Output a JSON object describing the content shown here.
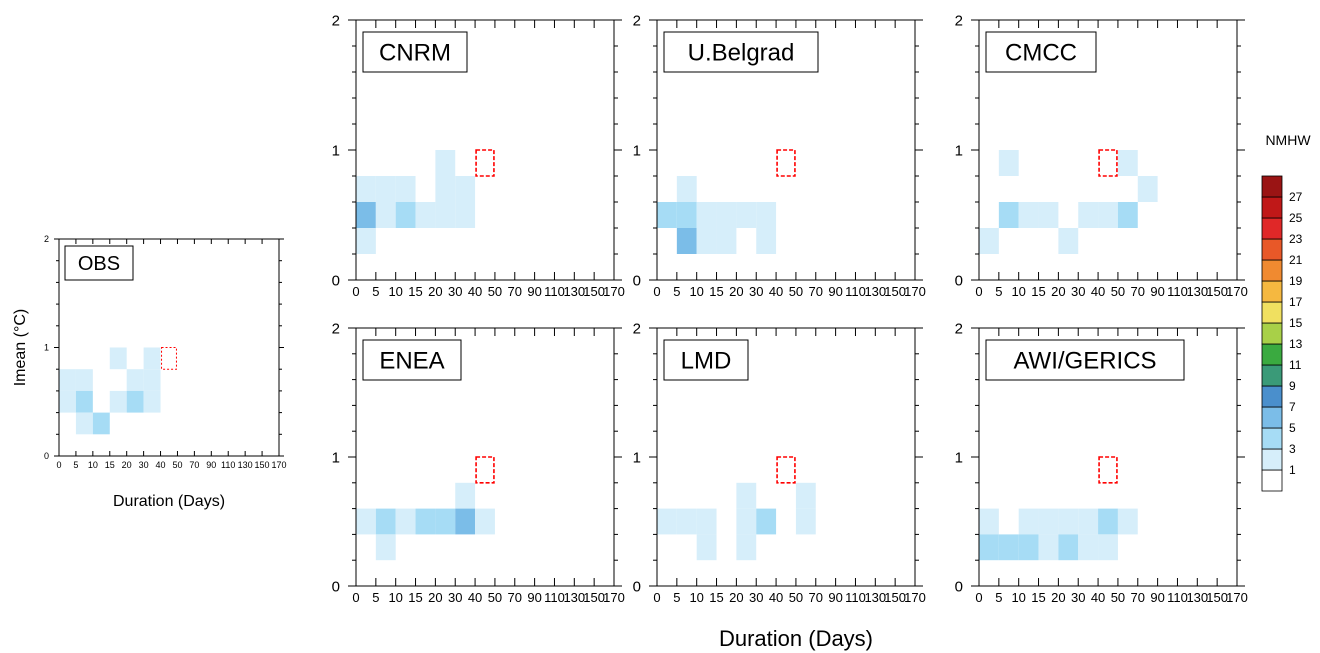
{
  "figure": {
    "shared_xlabel": "Duration (Days)",
    "colorbar": {
      "title": "NMHW",
      "levels": [
        "1",
        "3",
        "5",
        "7",
        "9",
        "11",
        "13",
        "15",
        "17",
        "19",
        "21",
        "23",
        "25",
        "27"
      ],
      "colors": [
        "#ffffff",
        "#d6eefa",
        "#a6dcf5",
        "#7bbde8",
        "#4a8fcc",
        "#3a9a78",
        "#3aaa40",
        "#a8d048",
        "#f0e060",
        "#f5b840",
        "#f08a30",
        "#e85828",
        "#e02828",
        "#c01818",
        "#9a1414"
      ]
    }
  },
  "chart_data": [
    {
      "type": "heatmap",
      "label": "OBS",
      "xlabel": "Duration (Days)",
      "ylabel": "Imean (°C)",
      "x_ticks": [
        "0",
        "5",
        "10",
        "15",
        "20",
        "30",
        "40",
        "50",
        "70",
        "90",
        "110",
        "130",
        "150",
        "170"
      ],
      "y_ticks": [
        "0",
        "1",
        "2"
      ],
      "ylim": [
        0,
        2
      ],
      "y_bin": 0.2,
      "highlight": {
        "x_bin": 6,
        "y": [
          0.8,
          1.0
        ],
        "color": "#ff0000"
      },
      "cells": [
        {
          "x_bin": 3,
          "y": 0.8,
          "count": 2
        },
        {
          "x_bin": 5,
          "y": 0.8,
          "count": 2
        },
        {
          "x_bin": 0,
          "y": 0.6,
          "count": 2
        },
        {
          "x_bin": 1,
          "y": 0.6,
          "count": 2
        },
        {
          "x_bin": 4,
          "y": 0.6,
          "count": 2
        },
        {
          "x_bin": 5,
          "y": 0.6,
          "count": 2
        },
        {
          "x_bin": 0,
          "y": 0.4,
          "count": 2
        },
        {
          "x_bin": 1,
          "y": 0.4,
          "count": 4
        },
        {
          "x_bin": 3,
          "y": 0.4,
          "count": 2
        },
        {
          "x_bin": 4,
          "y": 0.4,
          "count": 4
        },
        {
          "x_bin": 5,
          "y": 0.4,
          "count": 2
        },
        {
          "x_bin": 1,
          "y": 0.2,
          "count": 2
        },
        {
          "x_bin": 2,
          "y": 0.2,
          "count": 4
        }
      ]
    },
    {
      "type": "heatmap",
      "label": "CNRM",
      "x_ticks": [
        "0",
        "5",
        "10",
        "15",
        "20",
        "30",
        "40",
        "50",
        "70",
        "90",
        "110",
        "130",
        "150",
        "170"
      ],
      "y_ticks": [
        "0",
        "1",
        "2"
      ],
      "ylim": [
        0,
        2
      ],
      "y_bin": 0.2,
      "highlight": {
        "x_bin": 6,
        "y": [
          0.8,
          1.0
        ],
        "color": "#ff0000"
      },
      "cells": [
        {
          "x_bin": 4,
          "y": 0.8,
          "count": 2
        },
        {
          "x_bin": 0,
          "y": 0.6,
          "count": 2
        },
        {
          "x_bin": 1,
          "y": 0.6,
          "count": 2
        },
        {
          "x_bin": 2,
          "y": 0.6,
          "count": 2
        },
        {
          "x_bin": 4,
          "y": 0.6,
          "count": 2
        },
        {
          "x_bin": 5,
          "y": 0.6,
          "count": 2
        },
        {
          "x_bin": 0,
          "y": 0.4,
          "count": 6
        },
        {
          "x_bin": 1,
          "y": 0.4,
          "count": 2
        },
        {
          "x_bin": 2,
          "y": 0.4,
          "count": 4
        },
        {
          "x_bin": 3,
          "y": 0.4,
          "count": 2
        },
        {
          "x_bin": 4,
          "y": 0.4,
          "count": 2
        },
        {
          "x_bin": 5,
          "y": 0.4,
          "count": 2
        },
        {
          "x_bin": 0,
          "y": 0.2,
          "count": 2
        }
      ]
    },
    {
      "type": "heatmap",
      "label": "U.Belgrad",
      "x_ticks": [
        "0",
        "5",
        "10",
        "15",
        "20",
        "30",
        "40",
        "50",
        "70",
        "90",
        "110",
        "130",
        "150",
        "170"
      ],
      "y_ticks": [
        "0",
        "1",
        "2"
      ],
      "ylim": [
        0,
        2
      ],
      "y_bin": 0.2,
      "highlight": {
        "x_bin": 6,
        "y": [
          0.8,
          1.0
        ],
        "color": "#ff0000"
      },
      "cells": [
        {
          "x_bin": 1,
          "y": 0.6,
          "count": 2
        },
        {
          "x_bin": 0,
          "y": 0.4,
          "count": 4
        },
        {
          "x_bin": 1,
          "y": 0.4,
          "count": 4
        },
        {
          "x_bin": 2,
          "y": 0.4,
          "count": 2
        },
        {
          "x_bin": 3,
          "y": 0.4,
          "count": 2
        },
        {
          "x_bin": 4,
          "y": 0.4,
          "count": 2
        },
        {
          "x_bin": 5,
          "y": 0.4,
          "count": 2
        },
        {
          "x_bin": 1,
          "y": 0.2,
          "count": 6
        },
        {
          "x_bin": 2,
          "y": 0.2,
          "count": 2
        },
        {
          "x_bin": 3,
          "y": 0.2,
          "count": 2
        },
        {
          "x_bin": 5,
          "y": 0.2,
          "count": 2
        }
      ]
    },
    {
      "type": "heatmap",
      "label": "CMCC",
      "x_ticks": [
        "0",
        "5",
        "10",
        "15",
        "20",
        "30",
        "40",
        "50",
        "70",
        "90",
        "110",
        "130",
        "150",
        "170"
      ],
      "y_ticks": [
        "0",
        "1",
        "2"
      ],
      "ylim": [
        0,
        2
      ],
      "y_bin": 0.2,
      "highlight": {
        "x_bin": 6,
        "y": [
          0.8,
          1.0
        ],
        "color": "#ff0000"
      },
      "cells": [
        {
          "x_bin": 1,
          "y": 0.8,
          "count": 2
        },
        {
          "x_bin": 7,
          "y": 0.8,
          "count": 2
        },
        {
          "x_bin": 8,
          "y": 0.6,
          "count": 2
        },
        {
          "x_bin": 1,
          "y": 0.4,
          "count": 4
        },
        {
          "x_bin": 2,
          "y": 0.4,
          "count": 2
        },
        {
          "x_bin": 3,
          "y": 0.4,
          "count": 2
        },
        {
          "x_bin": 5,
          "y": 0.4,
          "count": 2
        },
        {
          "x_bin": 6,
          "y": 0.4,
          "count": 2
        },
        {
          "x_bin": 7,
          "y": 0.4,
          "count": 4
        },
        {
          "x_bin": 0,
          "y": 0.2,
          "count": 2
        },
        {
          "x_bin": 4,
          "y": 0.2,
          "count": 2
        }
      ]
    },
    {
      "type": "heatmap",
      "label": "ENEA",
      "x_ticks": [
        "0",
        "5",
        "10",
        "15",
        "20",
        "30",
        "40",
        "50",
        "70",
        "90",
        "110",
        "130",
        "150",
        "170"
      ],
      "y_ticks": [
        "0",
        "1",
        "2"
      ],
      "ylim": [
        0,
        2
      ],
      "y_bin": 0.2,
      "highlight": {
        "x_bin": 6,
        "y": [
          0.8,
          1.0
        ],
        "color": "#ff0000"
      },
      "cells": [
        {
          "x_bin": 5,
          "y": 0.6,
          "count": 2
        },
        {
          "x_bin": 0,
          "y": 0.4,
          "count": 2
        },
        {
          "x_bin": 1,
          "y": 0.4,
          "count": 4
        },
        {
          "x_bin": 2,
          "y": 0.4,
          "count": 2
        },
        {
          "x_bin": 3,
          "y": 0.4,
          "count": 4
        },
        {
          "x_bin": 4,
          "y": 0.4,
          "count": 4
        },
        {
          "x_bin": 5,
          "y": 0.4,
          "count": 6
        },
        {
          "x_bin": 6,
          "y": 0.4,
          "count": 2
        },
        {
          "x_bin": 1,
          "y": 0.2,
          "count": 2
        }
      ]
    },
    {
      "type": "heatmap",
      "label": "LMD",
      "x_ticks": [
        "0",
        "5",
        "10",
        "15",
        "20",
        "30",
        "40",
        "50",
        "70",
        "90",
        "110",
        "130",
        "150",
        "170"
      ],
      "y_ticks": [
        "0",
        "1",
        "2"
      ],
      "ylim": [
        0,
        2
      ],
      "y_bin": 0.2,
      "highlight": {
        "x_bin": 6,
        "y": [
          0.8,
          1.0
        ],
        "color": "#ff0000"
      },
      "cells": [
        {
          "x_bin": 4,
          "y": 0.6,
          "count": 2
        },
        {
          "x_bin": 7,
          "y": 0.6,
          "count": 2
        },
        {
          "x_bin": 0,
          "y": 0.4,
          "count": 2
        },
        {
          "x_bin": 1,
          "y": 0.4,
          "count": 2
        },
        {
          "x_bin": 2,
          "y": 0.4,
          "count": 2
        },
        {
          "x_bin": 4,
          "y": 0.4,
          "count": 2
        },
        {
          "x_bin": 5,
          "y": 0.4,
          "count": 4
        },
        {
          "x_bin": 7,
          "y": 0.4,
          "count": 2
        },
        {
          "x_bin": 2,
          "y": 0.2,
          "count": 2
        },
        {
          "x_bin": 4,
          "y": 0.2,
          "count": 2
        }
      ]
    },
    {
      "type": "heatmap",
      "label": "AWI/GERICS",
      "x_ticks": [
        "0",
        "5",
        "10",
        "15",
        "20",
        "30",
        "40",
        "50",
        "70",
        "90",
        "110",
        "130",
        "150",
        "170"
      ],
      "y_ticks": [
        "0",
        "1",
        "2"
      ],
      "ylim": [
        0,
        2
      ],
      "y_bin": 0.2,
      "highlight": {
        "x_bin": 6,
        "y": [
          0.8,
          1.0
        ],
        "color": "#ff0000"
      },
      "cells": [
        {
          "x_bin": 0,
          "y": 0.4,
          "count": 2
        },
        {
          "x_bin": 2,
          "y": 0.4,
          "count": 2
        },
        {
          "x_bin": 3,
          "y": 0.4,
          "count": 2
        },
        {
          "x_bin": 4,
          "y": 0.4,
          "count": 2
        },
        {
          "x_bin": 5,
          "y": 0.4,
          "count": 2
        },
        {
          "x_bin": 6,
          "y": 0.4,
          "count": 4
        },
        {
          "x_bin": 7,
          "y": 0.4,
          "count": 2
        },
        {
          "x_bin": 0,
          "y": 0.2,
          "count": 4
        },
        {
          "x_bin": 1,
          "y": 0.2,
          "count": 4
        },
        {
          "x_bin": 2,
          "y": 0.2,
          "count": 4
        },
        {
          "x_bin": 3,
          "y": 0.2,
          "count": 2
        },
        {
          "x_bin": 4,
          "y": 0.2,
          "count": 4
        },
        {
          "x_bin": 5,
          "y": 0.2,
          "count": 2
        },
        {
          "x_bin": 6,
          "y": 0.2,
          "count": 2
        }
      ]
    }
  ]
}
